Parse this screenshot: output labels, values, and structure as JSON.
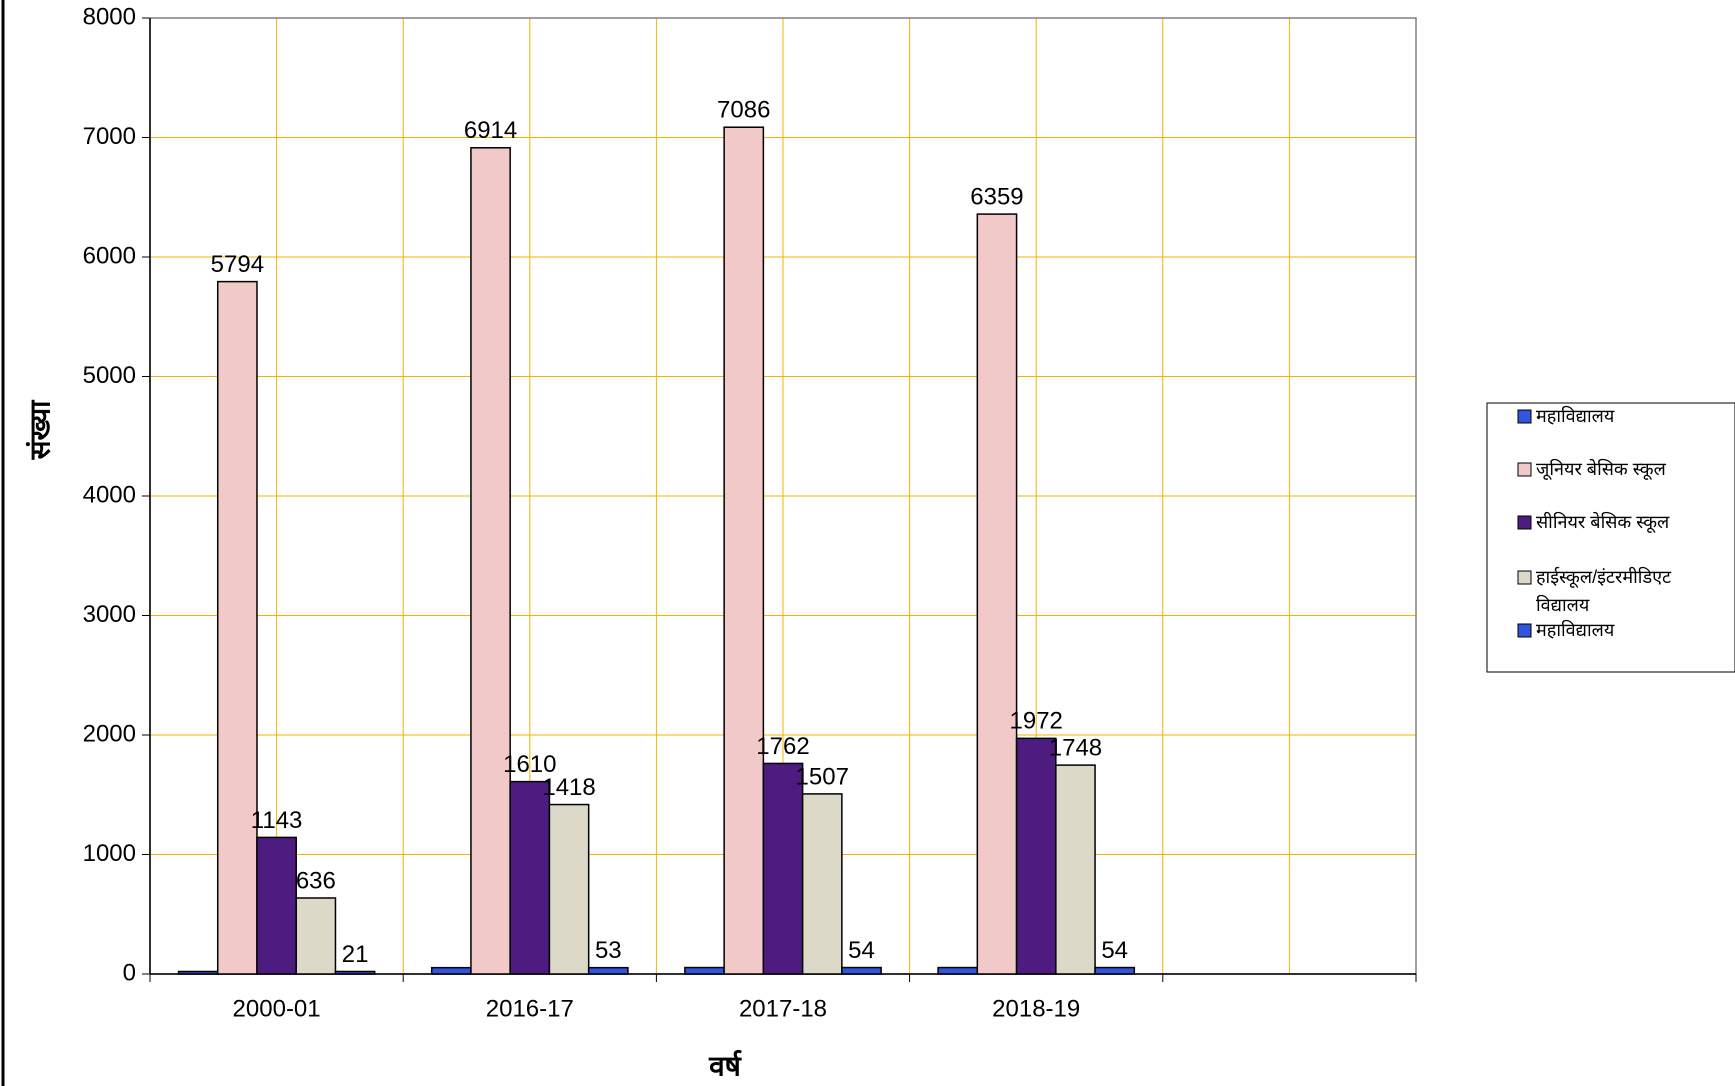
{
  "chart_data": {
    "type": "bar",
    "x_label": "वर्ष",
    "y_label": "संख्या",
    "categories": [
      "2000-01",
      "2016-17",
      "2017-18",
      "2018-19",
      null
    ],
    "series": [
      {
        "name": "महाविद्यालय",
        "color": "#3355dd",
        "values": [
          21,
          53,
          54,
          54,
          null
        ],
        "data_labels": false
      },
      {
        "name": "जूनियर बेसिक स्कूल",
        "color": "#f2c9c9",
        "values": [
          5794,
          6914,
          7086,
          6359,
          null
        ],
        "data_labels": true
      },
      {
        "name": "सीनियर बेसिक स्कूल",
        "color": "#4e1c80",
        "values": [
          1143,
          1610,
          1762,
          1972,
          null
        ],
        "data_labels": true
      },
      {
        "name": "हाईस्कूल/इंटरमीडिएट विद्यालय",
        "color": "#ddd9c9",
        "values": [
          636,
          1418,
          1507,
          1748,
          null
        ],
        "data_labels": true
      },
      {
        "name": "महाविद्यालय",
        "color": "#3355dd",
        "values": [
          21,
          53,
          54,
          54,
          null
        ],
        "data_labels": true
      }
    ],
    "ylim": [
      0,
      8000
    ],
    "yticks": [
      0,
      1000,
      2000,
      3000,
      4000,
      5000,
      6000,
      7000,
      8000
    ],
    "grid": true,
    "grid_color": "#f0b400",
    "legend": "right"
  }
}
